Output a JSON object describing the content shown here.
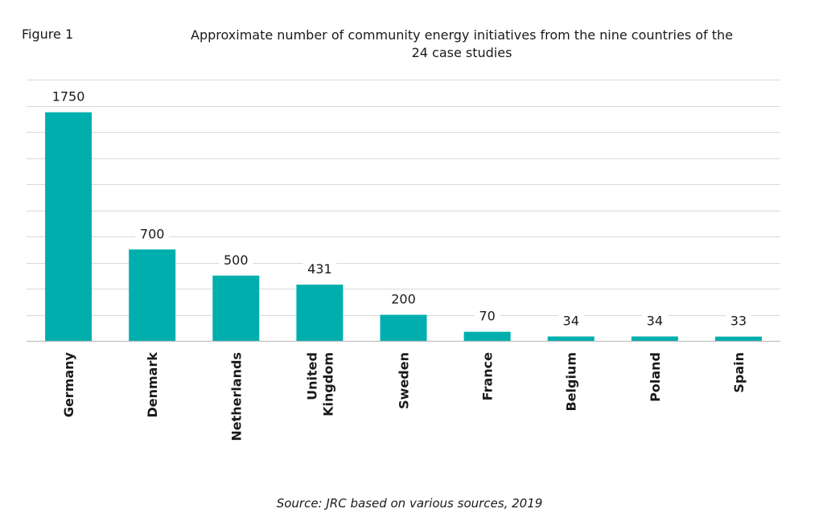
{
  "figure_label": "Figure 1",
  "title_lines": [
    "Approximate number of community energy initiatives from the nine countries of the",
    "24 case studies"
  ],
  "source": "Source: JRC based on various sources, 2019",
  "colors": {
    "bar": "#00afad",
    "grid": "#d9d9d9",
    "axis": "#bfbfbf",
    "text": "#1a1a1a"
  },
  "chart_data": {
    "type": "bar",
    "title": "Approximate number of community energy initiatives from the nine countries of the 24 case studies",
    "xlabel": "",
    "ylabel": "",
    "categories": [
      "Germany",
      "Denmark",
      "Netherlands",
      "United Kingdom",
      "Sweden",
      "France",
      "Belgium",
      "Poland",
      "Spain"
    ],
    "category_lines": [
      [
        "Germany"
      ],
      [
        "Denmark"
      ],
      [
        "Netherlands"
      ],
      [
        "United",
        "Kingdom"
      ],
      [
        "Sweden"
      ],
      [
        "France"
      ],
      [
        "Belgium"
      ],
      [
        "Poland"
      ],
      [
        "Spain"
      ]
    ],
    "values": [
      1750,
      700,
      500,
      431,
      200,
      70,
      34,
      34,
      33
    ],
    "data_labels": [
      "1750",
      "700",
      "500",
      "431",
      "200",
      "70",
      "34",
      "34",
      "33"
    ],
    "ylim": [
      0,
      2000
    ],
    "ytick_step": 200,
    "y_tick_labels_shown": false,
    "grid": true,
    "legend": "none"
  }
}
